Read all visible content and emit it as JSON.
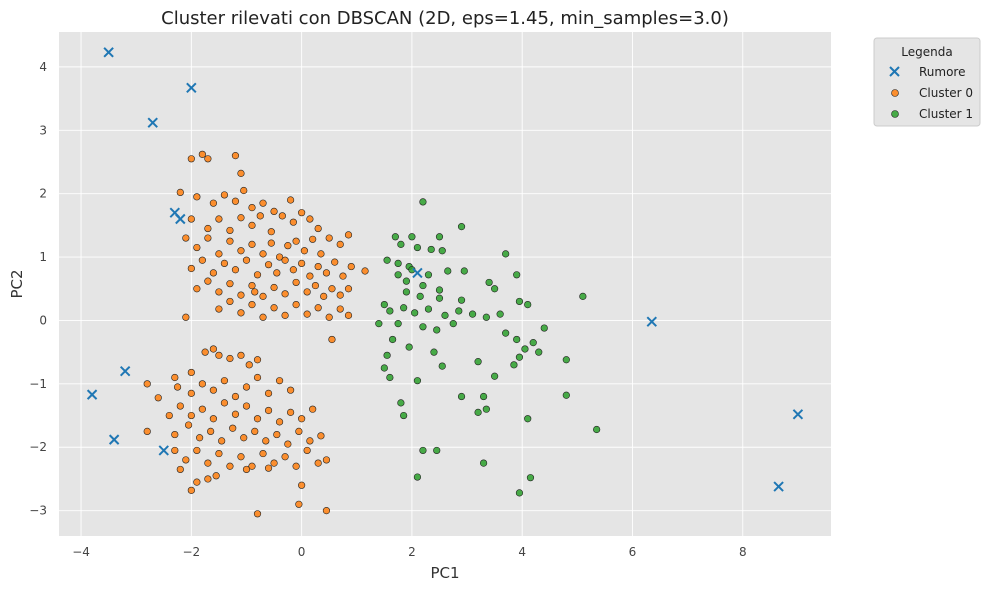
{
  "chart_data": {
    "type": "scatter",
    "title": "Cluster rilevati con DBSCAN (2D, eps=1.45, min_samples=3.0)",
    "xlabel": "PC1",
    "ylabel": "PC2",
    "xlim": [
      -4.4,
      9.6
    ],
    "ylim": [
      -3.4,
      4.55
    ],
    "xticks": [
      -4,
      -2,
      0,
      2,
      4,
      6,
      8
    ],
    "yticks": [
      -3,
      -2,
      -1,
      0,
      1,
      2,
      3,
      4
    ],
    "xtick_labels": [
      "−4",
      "−2",
      "0",
      "2",
      "4",
      "6",
      "8"
    ],
    "ytick_labels": [
      "−3",
      "−2",
      "−1",
      "0",
      "1",
      "2",
      "3",
      "4"
    ],
    "grid": true,
    "background": "#e5e5e5",
    "legend": {
      "title": "Legenda",
      "position": "outside-top-right"
    },
    "series": [
      {
        "name": "Rumore",
        "marker": "x",
        "color": "#1f77b4",
        "points": [
          [
            -3.5,
            4.23
          ],
          [
            -2.0,
            3.67
          ],
          [
            -2.7,
            3.12
          ],
          [
            -2.3,
            1.7
          ],
          [
            -2.2,
            1.6
          ],
          [
            -3.2,
            -0.8
          ],
          [
            -3.8,
            -1.17
          ],
          [
            -3.4,
            -1.88
          ],
          [
            -2.5,
            -2.05
          ],
          [
            2.1,
            0.75
          ],
          [
            6.35,
            -0.02
          ],
          [
            9.0,
            -1.48
          ],
          [
            8.65,
            -2.62
          ]
        ]
      },
      {
        "name": "Cluster 0",
        "marker": "circle",
        "color": "#ff7f0e",
        "points": [
          [
            -2.0,
            2.55
          ],
          [
            -1.8,
            2.62
          ],
          [
            -1.7,
            2.55
          ],
          [
            -1.2,
            2.6
          ],
          [
            -1.1,
            2.32
          ],
          [
            -2.2,
            2.02
          ],
          [
            -1.9,
            1.95
          ],
          [
            -1.6,
            1.85
          ],
          [
            -1.4,
            1.98
          ],
          [
            -1.2,
            1.88
          ],
          [
            -1.05,
            2.05
          ],
          [
            -0.9,
            1.78
          ],
          [
            -0.7,
            1.85
          ],
          [
            -0.5,
            1.72
          ],
          [
            -0.2,
            1.9
          ],
          [
            -2.0,
            1.6
          ],
          [
            -1.7,
            1.45
          ],
          [
            -1.5,
            1.6
          ],
          [
            -1.3,
            1.42
          ],
          [
            -1.1,
            1.62
          ],
          [
            -0.9,
            1.5
          ],
          [
            -0.75,
            1.65
          ],
          [
            -0.55,
            1.4
          ],
          [
            -0.35,
            1.65
          ],
          [
            -0.15,
            1.55
          ],
          [
            0.0,
            1.7
          ],
          [
            0.15,
            1.6
          ],
          [
            0.3,
            1.45
          ],
          [
            -2.1,
            1.3
          ],
          [
            -1.9,
            1.15
          ],
          [
            -1.7,
            1.3
          ],
          [
            -1.5,
            1.05
          ],
          [
            -1.3,
            1.25
          ],
          [
            -1.1,
            1.1
          ],
          [
            -0.9,
            1.2
          ],
          [
            -0.7,
            1.05
          ],
          [
            -0.55,
            1.22
          ],
          [
            -0.4,
            1.0
          ],
          [
            -0.25,
            1.18
          ],
          [
            -0.1,
            1.25
          ],
          [
            0.05,
            1.1
          ],
          [
            0.2,
            1.28
          ],
          [
            0.35,
            1.05
          ],
          [
            0.5,
            1.3
          ],
          [
            0.7,
            1.2
          ],
          [
            0.85,
            1.35
          ],
          [
            -2.0,
            0.82
          ],
          [
            -1.8,
            0.95
          ],
          [
            -1.6,
            0.75
          ],
          [
            -1.4,
            0.9
          ],
          [
            -1.2,
            0.8
          ],
          [
            -1.0,
            0.95
          ],
          [
            -0.8,
            0.72
          ],
          [
            -0.6,
            0.88
          ],
          [
            -0.45,
            0.75
          ],
          [
            -0.3,
            0.95
          ],
          [
            -0.15,
            0.8
          ],
          [
            0.0,
            0.9
          ],
          [
            0.15,
            0.7
          ],
          [
            0.3,
            0.85
          ],
          [
            0.45,
            0.75
          ],
          [
            0.6,
            0.92
          ],
          [
            0.75,
            0.7
          ],
          [
            0.9,
            0.85
          ],
          [
            1.15,
            0.78
          ],
          [
            -1.9,
            0.5
          ],
          [
            -1.7,
            0.62
          ],
          [
            -1.5,
            0.45
          ],
          [
            -1.3,
            0.58
          ],
          [
            -1.1,
            0.4
          ],
          [
            -0.9,
            0.55
          ],
          [
            -0.7,
            0.38
          ],
          [
            -0.5,
            0.52
          ],
          [
            -0.3,
            0.42
          ],
          [
            -0.1,
            0.6
          ],
          [
            0.1,
            0.45
          ],
          [
            0.25,
            0.55
          ],
          [
            0.4,
            0.38
          ],
          [
            0.55,
            0.5
          ],
          [
            0.7,
            0.4
          ],
          [
            0.85,
            0.5
          ],
          [
            -1.5,
            0.18
          ],
          [
            -1.3,
            0.3
          ],
          [
            -1.1,
            0.12
          ],
          [
            -0.9,
            0.25
          ],
          [
            -0.7,
            0.05
          ],
          [
            -0.5,
            0.2
          ],
          [
            -0.3,
            0.08
          ],
          [
            -0.1,
            0.25
          ],
          [
            0.1,
            0.1
          ],
          [
            0.3,
            0.2
          ],
          [
            0.5,
            0.05
          ],
          [
            0.7,
            0.18
          ],
          [
            0.85,
            0.08
          ],
          [
            -2.1,
            0.05
          ],
          [
            -0.85,
            0.45
          ],
          [
            0.55,
            -0.3
          ],
          [
            -2.3,
            -0.9
          ],
          [
            -2.0,
            -0.82
          ],
          [
            -1.75,
            -0.5
          ],
          [
            -1.6,
            -0.45
          ],
          [
            -1.5,
            -0.55
          ],
          [
            -1.3,
            -0.6
          ],
          [
            -1.1,
            -0.55
          ],
          [
            -0.95,
            -0.7
          ],
          [
            -0.8,
            -0.62
          ],
          [
            -2.8,
            -1.0
          ],
          [
            -2.6,
            -1.22
          ],
          [
            -2.25,
            -1.05
          ],
          [
            -2.0,
            -1.15
          ],
          [
            -1.8,
            -1.0
          ],
          [
            -1.6,
            -1.1
          ],
          [
            -1.4,
            -0.95
          ],
          [
            -1.2,
            -1.2
          ],
          [
            -1.0,
            -1.05
          ],
          [
            -0.8,
            -0.9
          ],
          [
            -0.6,
            -1.15
          ],
          [
            -0.4,
            -0.95
          ],
          [
            -0.2,
            -1.1
          ],
          [
            -2.2,
            -1.35
          ],
          [
            -2.0,
            -1.5
          ],
          [
            -1.8,
            -1.4
          ],
          [
            -1.6,
            -1.55
          ],
          [
            -1.4,
            -1.3
          ],
          [
            -1.2,
            -1.48
          ],
          [
            -1.0,
            -1.35
          ],
          [
            -0.8,
            -1.55
          ],
          [
            -0.6,
            -1.42
          ],
          [
            -0.4,
            -1.6
          ],
          [
            -0.2,
            -1.45
          ],
          [
            0.0,
            -1.55
          ],
          [
            0.2,
            -1.4
          ],
          [
            -2.8,
            -1.75
          ],
          [
            -2.3,
            -1.8
          ],
          [
            -2.05,
            -1.65
          ],
          [
            -1.85,
            -1.85
          ],
          [
            -1.65,
            -1.75
          ],
          [
            -1.45,
            -1.9
          ],
          [
            -1.25,
            -1.7
          ],
          [
            -1.05,
            -1.85
          ],
          [
            -0.85,
            -1.75
          ],
          [
            -0.65,
            -1.9
          ],
          [
            -0.45,
            -1.8
          ],
          [
            -0.25,
            -1.95
          ],
          [
            -0.05,
            -1.75
          ],
          [
            0.15,
            -1.9
          ],
          [
            0.35,
            -1.82
          ],
          [
            -2.3,
            -2.05
          ],
          [
            -2.1,
            -2.2
          ],
          [
            -1.9,
            -2.05
          ],
          [
            -1.7,
            -2.25
          ],
          [
            -1.5,
            -2.1
          ],
          [
            -1.3,
            -2.3
          ],
          [
            -1.1,
            -2.15
          ],
          [
            -0.9,
            -2.3
          ],
          [
            -0.7,
            -2.1
          ],
          [
            -0.5,
            -2.25
          ],
          [
            -0.3,
            -2.15
          ],
          [
            -0.1,
            -2.3
          ],
          [
            0.1,
            -2.05
          ],
          [
            0.3,
            -2.25
          ],
          [
            0.45,
            -2.2
          ],
          [
            -2.2,
            -2.35
          ],
          [
            -1.9,
            -2.55
          ],
          [
            -1.7,
            -2.5
          ],
          [
            -1.55,
            -2.45
          ],
          [
            -1.0,
            -2.35
          ],
          [
            -0.6,
            -2.33
          ],
          [
            0.0,
            -2.6
          ],
          [
            -0.05,
            -2.9
          ],
          [
            -0.8,
            -3.05
          ],
          [
            0.45,
            -3.0
          ],
          [
            -2.0,
            -2.68
          ],
          [
            -2.4,
            -1.5
          ]
        ]
      },
      {
        "name": "Cluster 1",
        "marker": "circle",
        "color": "#2ca02c",
        "points": [
          [
            2.2,
            1.87
          ],
          [
            2.9,
            1.48
          ],
          [
            1.7,
            1.32
          ],
          [
            2.0,
            1.32
          ],
          [
            2.5,
            1.32
          ],
          [
            1.8,
            1.2
          ],
          [
            2.1,
            1.15
          ],
          [
            2.35,
            1.12
          ],
          [
            2.55,
            1.1
          ],
          [
            1.55,
            0.95
          ],
          [
            1.75,
            0.9
          ],
          [
            1.95,
            0.85
          ],
          [
            3.7,
            1.05
          ],
          [
            1.75,
            0.72
          ],
          [
            2.0,
            0.8
          ],
          [
            2.3,
            0.72
          ],
          [
            2.65,
            0.78
          ],
          [
            2.95,
            0.78
          ],
          [
            1.9,
            0.62
          ],
          [
            2.2,
            0.55
          ],
          [
            2.5,
            0.48
          ],
          [
            3.4,
            0.6
          ],
          [
            3.9,
            0.72
          ],
          [
            1.5,
            0.25
          ],
          [
            1.9,
            0.45
          ],
          [
            2.15,
            0.38
          ],
          [
            2.5,
            0.35
          ],
          [
            2.9,
            0.32
          ],
          [
            3.5,
            0.5
          ],
          [
            1.6,
            0.15
          ],
          [
            1.85,
            0.2
          ],
          [
            2.05,
            0.12
          ],
          [
            2.3,
            0.18
          ],
          [
            2.6,
            0.08
          ],
          [
            2.85,
            0.15
          ],
          [
            3.1,
            0.1
          ],
          [
            3.35,
            0.05
          ],
          [
            3.6,
            0.1
          ],
          [
            4.1,
            0.25
          ],
          [
            1.4,
            -0.05
          ],
          [
            1.75,
            -0.05
          ],
          [
            2.2,
            -0.1
          ],
          [
            2.45,
            -0.15
          ],
          [
            2.75,
            -0.05
          ],
          [
            3.95,
            0.3
          ],
          [
            5.1,
            0.38
          ],
          [
            1.55,
            -0.55
          ],
          [
            1.65,
            -0.3
          ],
          [
            1.95,
            -0.42
          ],
          [
            2.4,
            -0.5
          ],
          [
            3.9,
            -0.3
          ],
          [
            4.2,
            -0.35
          ],
          [
            4.4,
            -0.12
          ],
          [
            3.95,
            -0.58
          ],
          [
            4.05,
            -0.45
          ],
          [
            1.5,
            -0.75
          ],
          [
            1.6,
            -0.9
          ],
          [
            2.1,
            -0.95
          ],
          [
            2.55,
            -0.72
          ],
          [
            3.2,
            -0.65
          ],
          [
            3.5,
            -0.88
          ],
          [
            3.85,
            -0.7
          ],
          [
            4.8,
            -0.62
          ],
          [
            1.8,
            -1.3
          ],
          [
            1.85,
            -1.5
          ],
          [
            2.9,
            -1.2
          ],
          [
            3.3,
            -1.2
          ],
          [
            3.2,
            -1.45
          ],
          [
            3.35,
            -1.4
          ],
          [
            4.1,
            -1.55
          ],
          [
            4.8,
            -1.18
          ],
          [
            5.35,
            -1.72
          ],
          [
            2.2,
            -2.05
          ],
          [
            2.45,
            -2.05
          ],
          [
            2.1,
            -2.47
          ],
          [
            3.3,
            -2.25
          ],
          [
            3.95,
            -2.72
          ],
          [
            4.15,
            -2.48
          ],
          [
            4.3,
            -0.5
          ],
          [
            3.7,
            -0.2
          ]
        ]
      }
    ]
  }
}
